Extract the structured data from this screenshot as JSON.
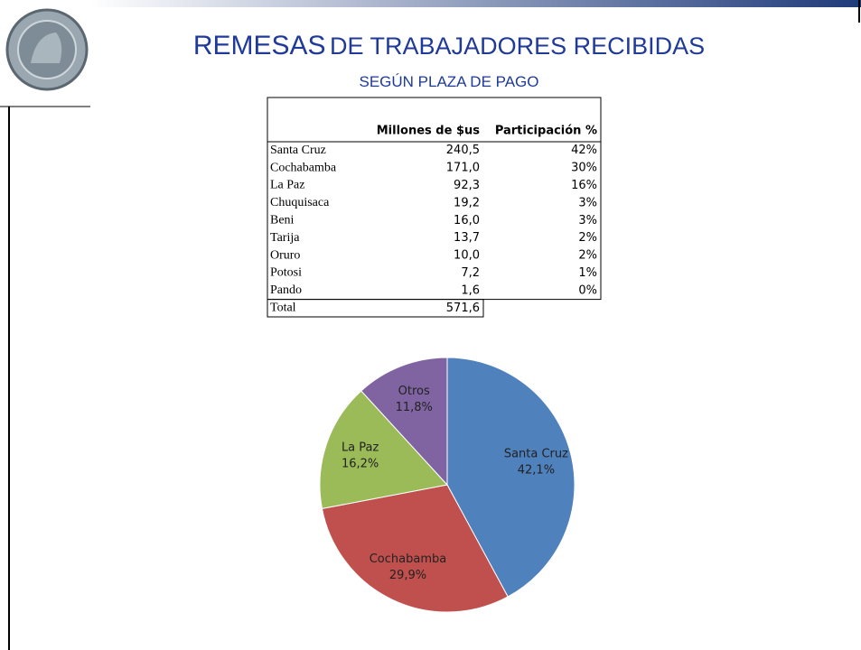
{
  "title": {
    "main": "REMESAS",
    "rest": "DE TRABAJADORES RECIBIDAS",
    "subtitle": "SEGÚN PLAZA DE PAGO"
  },
  "table": {
    "header": [
      "Millones de $us",
      "Participación %"
    ],
    "rows": [
      [
        "Santa Cruz",
        "240,5",
        "42%"
      ],
      [
        "Cochabamba",
        "171,0",
        "30%"
      ],
      [
        "La Paz",
        "92,3",
        "16%"
      ],
      [
        "Chuquisaca",
        "19,2",
        "3%"
      ],
      [
        "Beni",
        "16,0",
        "3%"
      ],
      [
        "Tarija",
        "13,7",
        "2%"
      ],
      [
        "Oruro",
        "10,0",
        "2%"
      ],
      [
        "Potosi",
        "7,2",
        "1%"
      ],
      [
        "Pando",
        "1,6",
        "0%"
      ]
    ],
    "total": [
      "Total",
      "571,6"
    ]
  },
  "chart_data": {
    "type": "pie",
    "categories": [
      "Santa Cruz",
      "Cochabamba",
      "La Paz",
      "Otros"
    ],
    "values": [
      42.1,
      29.9,
      16.2,
      11.8
    ],
    "value_labels": [
      "42,1%",
      "29,9%",
      "16,2%",
      "11,8%"
    ],
    "colors": [
      "#4f81bd",
      "#c0504d",
      "#9bbb59",
      "#8064a2"
    ]
  }
}
